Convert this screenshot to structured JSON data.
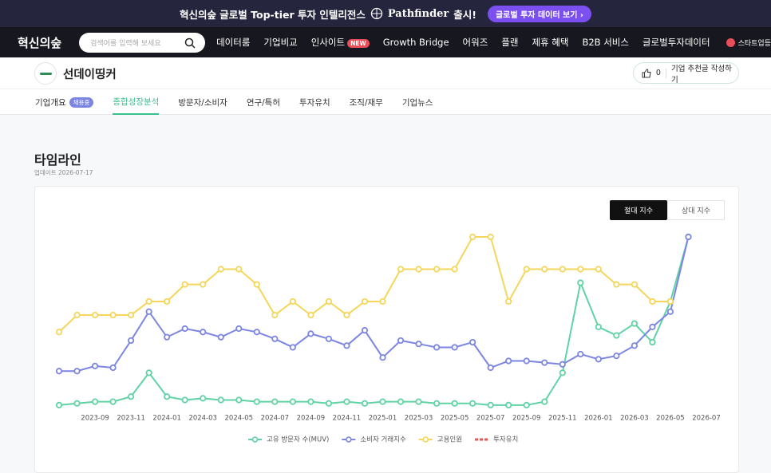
{
  "banner": {
    "text": "혁신의숲 글로벌 Top-tier 투자 인텔리전스",
    "brand": "Pathfinder",
    "suffix": "출시!",
    "button": "글로벌 투자 데이터 보기"
  },
  "nav": {
    "logo": "혁신의숲",
    "search_placeholder": "검색어를 입력해 보세요",
    "items": [
      "데이터룸",
      "기업비교",
      "인사이트",
      "Growth Bridge",
      "어워즈",
      "플랜",
      "제휴 혜택",
      "B2B 서비스",
      "글로벌투자데이터"
    ],
    "new_badge": "NEW",
    "startup": "스타트업등"
  },
  "company": {
    "name": "선데이띵커",
    "likes": 0,
    "recommend": "기업 추천글 작성하기"
  },
  "tabs": {
    "items": [
      "기업개요",
      "종합성장분석",
      "방문자/소비자",
      "연구/특허",
      "투자유치",
      "조직/재무",
      "기업뉴스"
    ],
    "badge": "채용중",
    "active": 1
  },
  "section": {
    "title": "타임라인",
    "updated": "업데이트 2026-07-17"
  },
  "toggle": [
    "절대 지수",
    "상대 지수"
  ],
  "chart_data": {
    "type": "line",
    "categories": [
      null,
      null,
      "2023-09",
      null,
      "2023-11",
      null,
      "2024-01",
      null,
      "2024-03",
      null,
      "2024-05",
      null,
      "2024-07",
      null,
      "2024-09",
      null,
      "2024-11",
      null,
      "2025-01",
      null,
      "2025-03",
      null,
      "2025-05",
      null,
      "2025-07",
      null,
      "2025-09",
      null,
      "2025-11",
      null,
      "2026-01",
      null,
      "2026-03",
      null,
      "2026-05",
      null,
      "2026-07"
    ],
    "series": [
      {
        "name": "고유 방문자 수(MUV)",
        "color": "#5fd3a5",
        "values": [
          1,
          2,
          3,
          3,
          6,
          20,
          6,
          4,
          5,
          4,
          4,
          3,
          3,
          3,
          3,
          2,
          3,
          2,
          3,
          3,
          3,
          2,
          2,
          2,
          1,
          1,
          1,
          3,
          20,
          73,
          47,
          42,
          49,
          38,
          62,
          100,
          null
        ]
      },
      {
        "name": "소비자 거래지수",
        "color": "#7c86e2",
        "values": [
          21,
          21,
          24,
          23,
          39,
          56,
          41,
          46,
          44,
          41,
          46,
          44,
          40,
          35,
          43,
          40,
          36,
          45,
          29,
          39,
          37,
          35,
          35,
          38,
          23,
          27,
          27,
          26,
          25,
          31,
          28,
          30,
          36,
          47,
          56,
          100,
          null
        ]
      },
      {
        "name": "고용인원",
        "color": "#f5d65a",
        "values": [
          44,
          54,
          54,
          54,
          54,
          62,
          62,
          72,
          72,
          81,
          81,
          72,
          54,
          62,
          54,
          62,
          54,
          62,
          62,
          81,
          81,
          81,
          81,
          100,
          100,
          62,
          81,
          81,
          81,
          81,
          81,
          72,
          72,
          62,
          62,
          null,
          null
        ]
      },
      {
        "name": "투자유치",
        "color": "#ef5350",
        "dashed": true,
        "values": [
          null,
          null,
          null,
          null,
          null,
          null,
          null,
          null,
          null,
          null,
          null,
          null,
          null,
          null,
          null,
          null,
          null,
          null,
          null,
          null,
          null,
          null,
          null,
          null,
          null,
          null,
          null,
          null,
          null,
          null,
          null,
          null,
          null,
          null,
          null,
          null,
          null
        ]
      }
    ],
    "ylim": [
      0,
      100
    ],
    "legend": "bottom"
  }
}
